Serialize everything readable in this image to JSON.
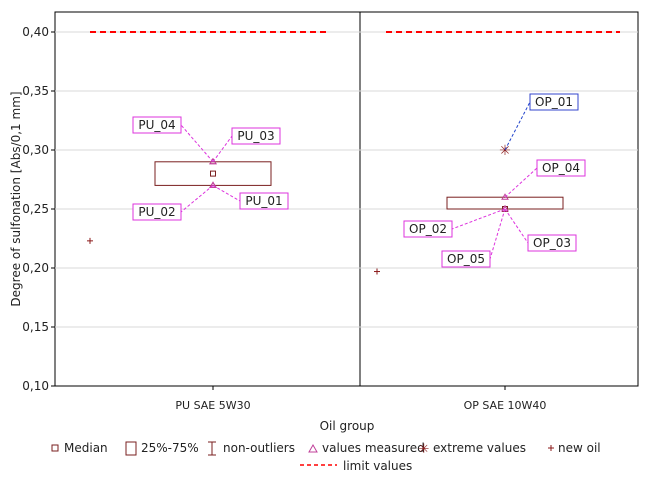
{
  "chart_data": {
    "type": "boxplot",
    "xlabel": "Oil group",
    "ylabel": "Degree of sulfonation [Abs/0,1 mm]",
    "ylim": [
      0.1,
      0.4
    ],
    "yticks": [
      "0,10",
      "0,15",
      "0,20",
      "0,25",
      "0,30",
      "0,35",
      "0,40"
    ],
    "grid": true,
    "limit_value": 0.4,
    "groups": [
      {
        "category": "PU SAE 5W30",
        "median": 0.28,
        "q1": 0.27,
        "q3": 0.29,
        "new_oil": 0.223,
        "measured": [
          {
            "label": "PU_04",
            "value": 0.29
          },
          {
            "label": "PU_03",
            "value": 0.29
          },
          {
            "label": "PU_02",
            "value": 0.27
          },
          {
            "label": "PU_01",
            "value": 0.27
          }
        ],
        "extremes": []
      },
      {
        "category": "OP SAE 10W40",
        "median": 0.25,
        "q1": 0.25,
        "q3": 0.26,
        "new_oil": 0.197,
        "measured": [
          {
            "label": "OP_04",
            "value": 0.26
          },
          {
            "label": "OP_02",
            "value": 0.25
          },
          {
            "label": "OP_03",
            "value": 0.25
          },
          {
            "label": "OP_05",
            "value": 0.25
          }
        ],
        "extremes": [
          {
            "label": "OP_01",
            "value": 0.3
          }
        ]
      }
    ]
  },
  "legend": {
    "median": "Median",
    "box": "25%-75%",
    "whisker": "non-outliers",
    "measured": "values measured",
    "extreme": "extreme values",
    "new_oil": "new oil",
    "limit": "limit values"
  },
  "colors": {
    "box": "#7a1f1f",
    "measured": "#c0409a",
    "label_border": "#dd33dd",
    "extreme_label_border": "#3344cc",
    "extreme_line": "#2244cc",
    "limit": "#ff0000",
    "new_oil": "#8b1a1a",
    "grid": "#d9d9d9"
  }
}
